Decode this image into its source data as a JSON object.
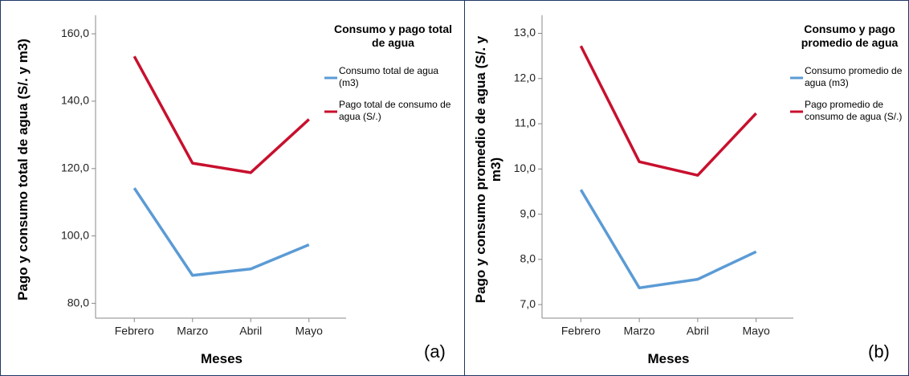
{
  "chart_data": [
    {
      "type": "line",
      "legend_title": "Consumo y pago total de agua",
      "xlabel": "Meses",
      "ylabel": "Pago y consumo total de agua (S/. y m3)",
      "panel_label": "(a)",
      "categories": [
        "Febrero",
        "Marzo",
        "Abril",
        "Mayo"
      ],
      "series": [
        {
          "name": "Consumo total de agua (m3)",
          "color": "#5b9bd5",
          "values": [
            114.2,
            88.3,
            90.2,
            97.4
          ]
        },
        {
          "name": "Pago total de consumo de agua (S/.)",
          "color": "#c8102e",
          "values": [
            153.3,
            121.6,
            118.8,
            134.6
          ]
        }
      ],
      "ylim": [
        75.6,
        165.5
      ],
      "yticks": [
        {
          "value": 80,
          "label": "80,0"
        },
        {
          "value": 100,
          "label": "100,0"
        },
        {
          "value": 120,
          "label": "120,0"
        },
        {
          "value": 140,
          "label": "140,0"
        },
        {
          "value": 160,
          "label": "160,0"
        }
      ]
    },
    {
      "type": "line",
      "legend_title": "Consumo y pago promedio de agua",
      "xlabel": "Meses",
      "ylabel": "Pago y consumo promedio de agua (S/. y m3)",
      "panel_label": "(b)",
      "categories": [
        "Febrero",
        "Marzo",
        "Abril",
        "Mayo"
      ],
      "series": [
        {
          "name": "Consumo promedio de agua (m3)",
          "color": "#5b9bd5",
          "values": [
            9.54,
            7.37,
            7.56,
            8.17
          ]
        },
        {
          "name": "Pago promedio de consumo de agua (S/.)",
          "color": "#c8102e",
          "values": [
            12.72,
            10.16,
            9.86,
            11.23
          ]
        }
      ],
      "ylim": [
        6.7,
        13.4
      ],
      "yticks": [
        {
          "value": 7,
          "label": "7,0"
        },
        {
          "value": 8,
          "label": "8,0"
        },
        {
          "value": 9,
          "label": "9,0"
        },
        {
          "value": 10,
          "label": "10,0"
        },
        {
          "value": 11,
          "label": "11,0"
        },
        {
          "value": 12,
          "label": "12,0"
        },
        {
          "value": 13,
          "label": "13,0"
        }
      ]
    }
  ]
}
